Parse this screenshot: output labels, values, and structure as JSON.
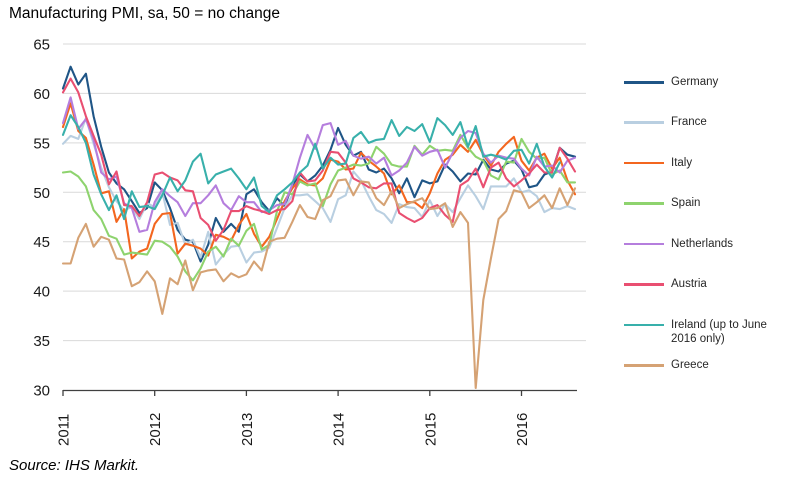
{
  "chart_data": {
    "type": "line",
    "title": "Manufacturing PMI, sa, 50 = no change",
    "source_note": "Source: IHS Markit.",
    "x": {
      "frequency": "monthly",
      "start": "2011-01",
      "end": "2016-08",
      "tick_labels": [
        "2011",
        "2012",
        "2013",
        "2014",
        "2015",
        "2016"
      ]
    },
    "y": {
      "min": 30,
      "max": 65,
      "ticks": [
        65,
        60,
        55,
        50,
        45,
        40,
        35,
        30
      ]
    },
    "grid": "horizontal",
    "legend_position": "right",
    "series": [
      {
        "name": "Germany",
        "color": "#1f5586",
        "values": [
          60.5,
          62.7,
          60.9,
          62.0,
          57.7,
          54.6,
          52.0,
          50.9,
          50.3,
          49.1,
          47.9,
          48.4,
          51.0,
          50.2,
          48.4,
          46.2,
          45.2,
          45.0,
          43.0,
          44.7,
          47.4,
          46.0,
          46.8,
          46.0,
          49.8,
          50.3,
          49.0,
          48.1,
          49.4,
          48.6,
          50.7,
          51.8,
          51.1,
          51.7,
          52.7,
          54.3,
          56.5,
          54.8,
          53.7,
          54.1,
          52.3,
          52.0,
          52.4,
          51.4,
          49.9,
          51.4,
          49.5,
          51.2,
          50.9,
          51.1,
          52.8,
          52.1,
          51.1,
          51.9,
          51.8,
          53.3,
          52.3,
          52.1,
          52.9,
          53.2,
          52.3,
          50.5,
          50.7,
          51.8,
          52.1,
          54.5,
          53.8,
          53.6
        ]
      },
      {
        "name": "France",
        "color": "#b9cfe1",
        "values": [
          54.9,
          55.7,
          55.4,
          57.5,
          54.9,
          52.5,
          50.5,
          49.1,
          48.2,
          48.5,
          47.3,
          48.9,
          48.5,
          50.0,
          46.7,
          46.9,
          44.7,
          45.2,
          43.4,
          46.0,
          42.7,
          43.7,
          44.5,
          44.6,
          42.9,
          43.9,
          44.0,
          44.4,
          46.4,
          48.4,
          49.7,
          49.7,
          49.8,
          49.1,
          48.4,
          47.0,
          49.3,
          49.7,
          52.1,
          51.2,
          49.6,
          48.2,
          47.8,
          46.9,
          48.8,
          48.5,
          48.4,
          47.5,
          49.2,
          47.6,
          48.8,
          48.0,
          49.4,
          50.7,
          49.6,
          48.3,
          50.6,
          50.6,
          50.6,
          51.4,
          50.0,
          50.2,
          49.6,
          48.0,
          48.4,
          48.3,
          48.6,
          48.3
        ]
      },
      {
        "name": "Italy",
        "color": "#f3661f",
        "values": [
          56.6,
          59.0,
          56.2,
          55.5,
          52.8,
          49.9,
          50.1,
          47.0,
          48.3,
          43.3,
          44.0,
          44.3,
          46.8,
          47.8,
          47.9,
          43.8,
          44.8,
          44.6,
          44.3,
          43.6,
          45.7,
          45.5,
          45.1,
          46.7,
          47.8,
          45.8,
          44.5,
          45.5,
          47.3,
          49.1,
          50.4,
          51.3,
          50.8,
          50.7,
          51.4,
          53.3,
          53.1,
          52.3,
          52.4,
          54.0,
          53.2,
          52.6,
          51.9,
          49.8,
          50.7,
          49.0,
          49.0,
          48.4,
          49.9,
          51.9,
          53.3,
          53.8,
          54.8,
          54.1,
          55.3,
          53.8,
          52.7,
          54.1,
          54.9,
          55.6,
          53.2,
          52.2,
          53.5,
          53.9,
          52.4,
          53.5,
          51.2,
          49.8
        ]
      },
      {
        "name": "Spain",
        "color": "#8ed36e",
        "values": [
          52.0,
          52.1,
          51.6,
          50.6,
          48.2,
          47.3,
          45.6,
          45.3,
          43.7,
          43.9,
          43.8,
          43.7,
          45.1,
          45.0,
          44.5,
          43.5,
          42.0,
          41.1,
          42.3,
          44.0,
          44.5,
          43.5,
          45.3,
          44.6,
          46.1,
          46.8,
          44.2,
          44.7,
          48.1,
          50.0,
          49.8,
          51.1,
          50.7,
          50.9,
          48.6,
          50.8,
          52.2,
          52.5,
          52.8,
          52.7,
          52.9,
          54.6,
          53.9,
          52.8,
          52.6,
          52.6,
          54.7,
          53.8,
          54.7,
          54.2,
          54.3,
          54.2,
          55.8,
          54.5,
          53.6,
          53.2,
          51.7,
          51.3,
          53.1,
          53.0,
          55.4,
          54.1,
          53.4,
          53.5,
          51.8,
          52.2,
          51.0,
          51.0
        ]
      },
      {
        "name": "Netherlands",
        "color": "#b57edd",
        "values": [
          57.0,
          59.6,
          56.4,
          57.4,
          55.3,
          52.0,
          51.3,
          51.6,
          48.9,
          48.4,
          46.0,
          46.2,
          49.0,
          50.3,
          49.6,
          49.0,
          47.6,
          48.9,
          48.9,
          49.7,
          50.7,
          48.9,
          48.2,
          49.6,
          49.0,
          49.0,
          48.0,
          48.2,
          48.7,
          48.8,
          50.8,
          53.5,
          55.8,
          54.4,
          56.8,
          57.0,
          54.8,
          55.2,
          53.7,
          53.4,
          53.6,
          52.9,
          53.5,
          51.7,
          52.2,
          53.0,
          54.6,
          53.7,
          54.1,
          54.3,
          52.5,
          54.0,
          55.5,
          56.2,
          56.0,
          53.9,
          53.0,
          53.7,
          53.5,
          53.4,
          52.4,
          51.7,
          53.6,
          52.6,
          52.7,
          52.0,
          53.2,
          53.5
        ]
      },
      {
        "name": "Austria",
        "color": "#e94f71",
        "values": [
          60.1,
          61.5,
          60.1,
          57.7,
          55.7,
          53.8,
          50.8,
          52.1,
          48.7,
          48.6,
          47.6,
          49.0,
          51.8,
          52.0,
          51.5,
          51.2,
          50.2,
          50.1,
          47.4,
          46.7,
          45.1,
          46.2,
          48.1,
          48.1,
          48.6,
          48.3,
          48.1,
          47.8,
          48.2,
          48.3,
          49.1,
          52.0,
          51.1,
          51.2,
          52.2,
          54.1,
          54.0,
          53.0,
          51.4,
          51.0,
          50.5,
          50.4,
          50.9,
          50.9,
          47.9,
          47.4,
          47.0,
          47.4,
          48.4,
          48.7,
          47.7,
          47.0,
          50.7,
          51.2,
          52.4,
          50.5,
          52.5,
          53.0,
          51.4,
          50.6,
          51.2,
          51.9,
          52.8,
          52.0,
          52.0,
          54.5,
          53.4,
          52.1
        ]
      },
      {
        "name": "Ireland (up to June 2016 only)",
        "color": "#38b0ab",
        "values": [
          55.8,
          57.8,
          56.6,
          55.0,
          51.8,
          49.8,
          48.2,
          49.7,
          47.3,
          50.1,
          48.5,
          48.6,
          48.3,
          49.7,
          51.5,
          50.1,
          51.2,
          53.1,
          53.9,
          50.9,
          51.8,
          52.1,
          52.4,
          51.4,
          50.3,
          51.5,
          48.6,
          48.0,
          49.7,
          50.3,
          51.0,
          52.0,
          52.7,
          54.9,
          52.4,
          53.5,
          52.8,
          52.9,
          55.5,
          56.1,
          55.0,
          55.3,
          55.4,
          57.3,
          55.7,
          56.6,
          56.2,
          56.9,
          55.1,
          57.5,
          56.8,
          55.8,
          57.1,
          54.6,
          56.7,
          53.6,
          53.8,
          53.6,
          53.3,
          54.2,
          54.3,
          52.9,
          54.9,
          52.6,
          51.5,
          53.0
        ]
      },
      {
        "name": "Greece",
        "color": "#d5a274",
        "values": [
          42.8,
          42.8,
          45.4,
          46.8,
          44.5,
          45.5,
          45.2,
          43.3,
          43.2,
          40.5,
          40.9,
          42.0,
          41.0,
          37.7,
          41.3,
          40.7,
          43.1,
          40.1,
          41.9,
          42.1,
          42.2,
          41.0,
          41.8,
          41.4,
          41.7,
          43.0,
          42.1,
          45.0,
          45.3,
          45.4,
          47.0,
          48.7,
          47.5,
          47.3,
          49.2,
          49.6,
          51.2,
          51.3,
          49.7,
          51.1,
          51.0,
          49.4,
          48.7,
          50.1,
          48.4,
          48.8,
          49.1,
          49.4,
          48.3,
          48.4,
          48.9,
          46.5,
          48.0,
          46.9,
          30.2,
          39.1,
          43.3,
          47.3,
          48.1,
          50.2,
          50.0,
          48.4,
          49.0,
          49.7,
          48.4,
          50.4,
          48.7,
          50.4
        ]
      }
    ],
    "style_colors": {
      "gridline": "#d9d9d9",
      "axis": "#404040",
      "tick_text": "#1a1a1a"
    }
  }
}
